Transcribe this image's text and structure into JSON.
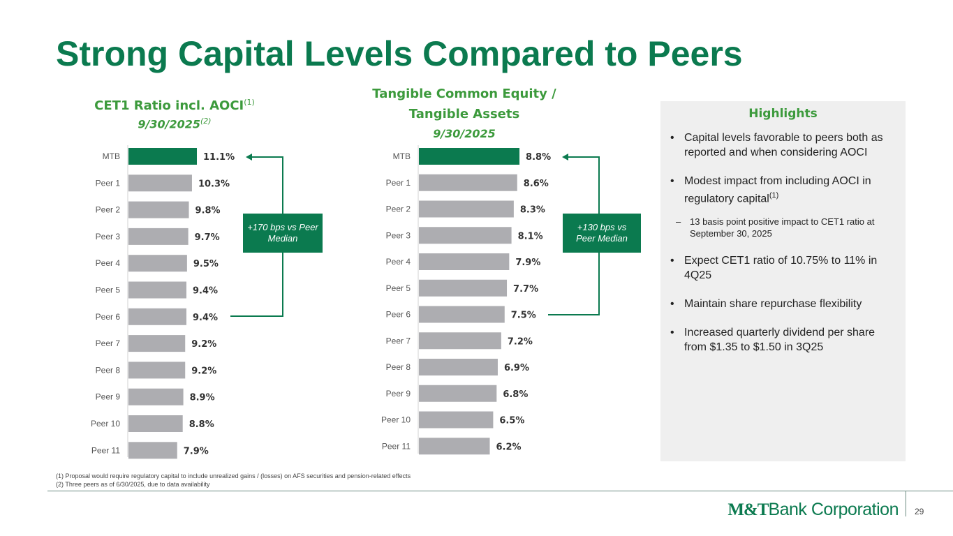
{
  "title": "Strong Capital Levels Compared to Peers",
  "chart_data": [
    {
      "type": "bar",
      "orientation": "horizontal",
      "title": "CET1 Ratio incl. AOCI",
      "title_sup": "(1)",
      "subtitle": "9/30/2025",
      "subtitle_sup": "(2)",
      "categories": [
        "MTB",
        "Peer 1",
        "Peer 2",
        "Peer 3",
        "Peer 4",
        "Peer 5",
        "Peer 6",
        "Peer 7",
        "Peer 8",
        "Peer 9",
        "Peer 10",
        "Peer 11"
      ],
      "values": [
        11.1,
        10.3,
        9.8,
        9.7,
        9.5,
        9.4,
        9.4,
        9.2,
        9.2,
        8.9,
        8.8,
        7.9
      ],
      "labels": [
        "11.1%",
        "10.3%",
        "9.8%",
        "9.7%",
        "9.5%",
        "9.4%",
        "9.4%",
        "9.2%",
        "9.2%",
        "8.9%",
        "8.8%",
        "7.9%"
      ],
      "highlight_color": "#0b7a4f",
      "bar_color": "#adadb1",
      "callout": "+170 bps vs Peer Median"
    },
    {
      "type": "bar",
      "orientation": "horizontal",
      "title": "Tangible Common Equity /",
      "title2": "Tangible Assets",
      "subtitle": "9/30/2025",
      "categories": [
        "MTB",
        "Peer 1",
        "Peer 2",
        "Peer 3",
        "Peer 4",
        "Peer 5",
        "Peer 6",
        "Peer 7",
        "Peer 8",
        "Peer 9",
        "Peer 10",
        "Peer 11"
      ],
      "values": [
        8.8,
        8.6,
        8.3,
        8.1,
        7.9,
        7.7,
        7.5,
        7.2,
        6.9,
        6.8,
        6.5,
        6.2
      ],
      "labels": [
        "8.8%",
        "8.6%",
        "8.3%",
        "8.1%",
        "7.9%",
        "7.7%",
        "7.5%",
        "7.2%",
        "6.9%",
        "6.8%",
        "6.5%",
        "6.2%"
      ],
      "highlight_color": "#0b7a4f",
      "bar_color": "#adadb1",
      "callout": "+130 bps vs Peer Median"
    }
  ],
  "highlights": {
    "title": "Highlights",
    "items": [
      {
        "text": "Capital levels favorable to peers both as reported and when considering AOCI"
      },
      {
        "text": "Modest impact from including AOCI in regulatory capital",
        "sup": "(1)"
      },
      {
        "text": "13 basis point positive impact to CET1 ratio at September 30, 2025",
        "sub": true
      },
      {
        "text": "Expect CET1 ratio of 10.75% to 11% in 4Q25"
      },
      {
        "text": "Maintain share repurchase flexibility"
      },
      {
        "text": "Increased quarterly dividend per share from $1.35 to $1.50 in 3Q25"
      }
    ]
  },
  "footnotes": [
    "(1) Proposal would require regulatory capital to include unrealized gains / (losses) on AFS securities and pension-related effects",
    "(2) Three peers as of 6/30/2025, due to data availability"
  ],
  "logo": {
    "bold": "M&T",
    "rest": "Bank Corporation"
  },
  "page_number": "29"
}
